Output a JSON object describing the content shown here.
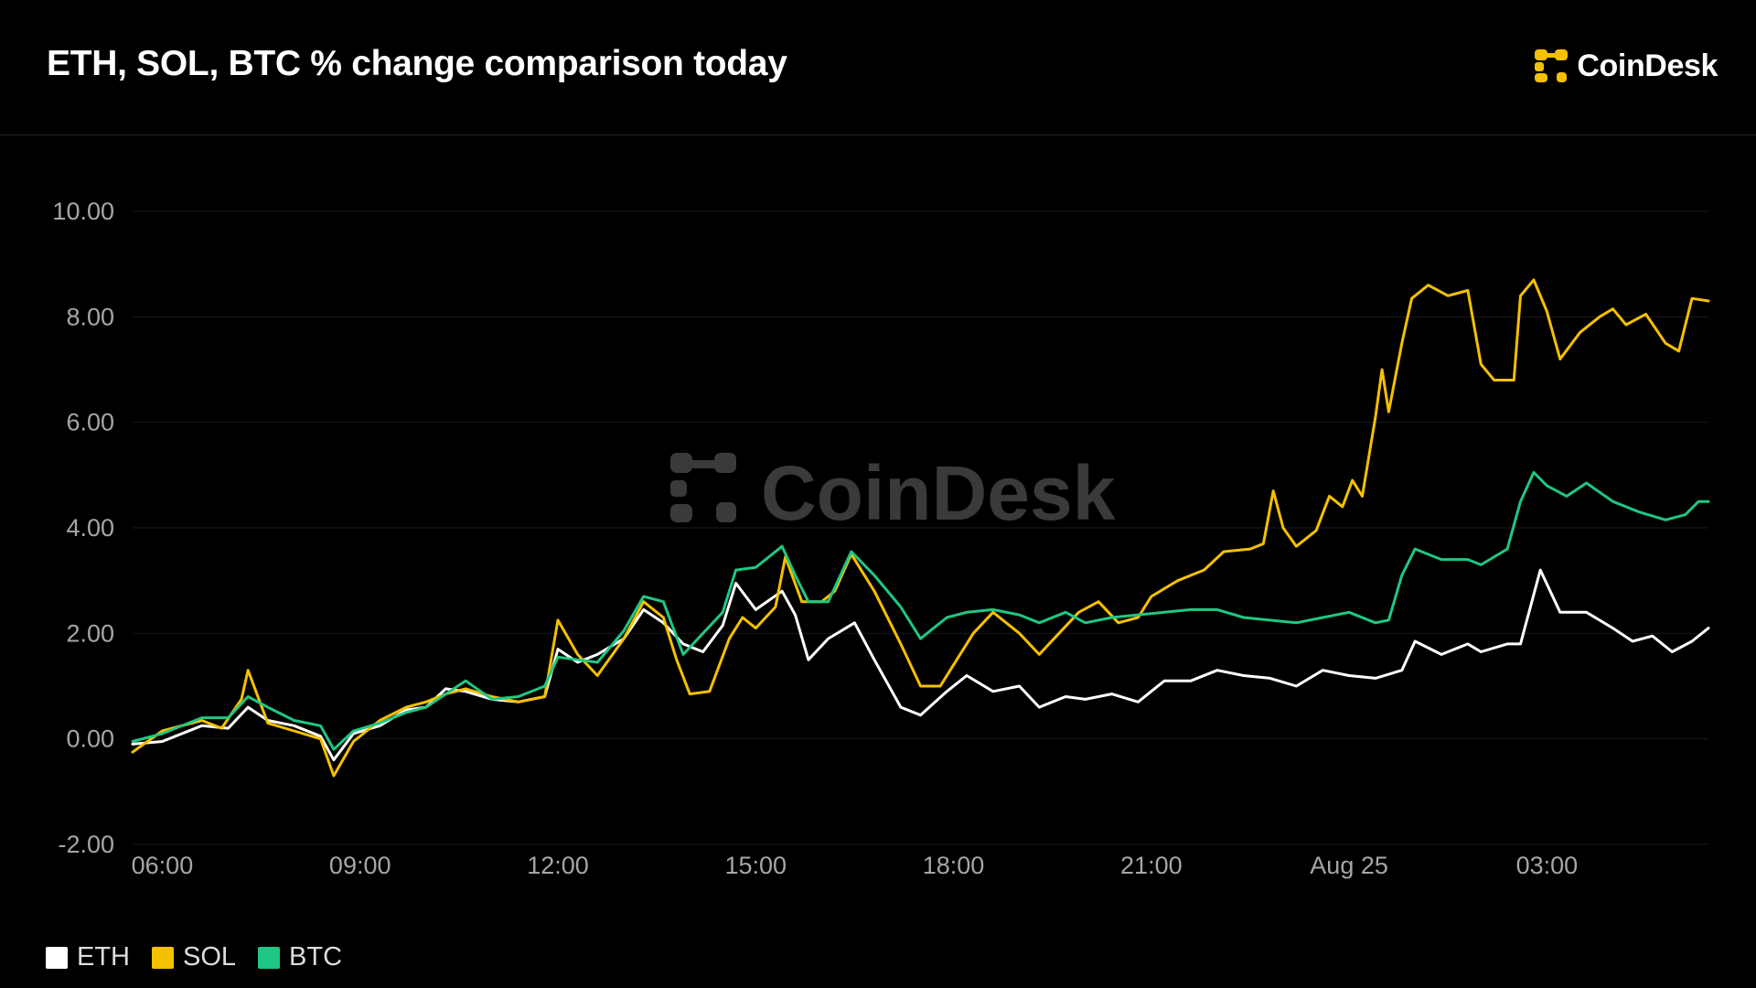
{
  "header": {
    "title": "ETH, SOL, BTC % change comparison today",
    "brand": "CoinDesk"
  },
  "colors": {
    "background": "#000000",
    "eth": "#ffffff",
    "sol": "#f5c000",
    "btc": "#1fc783",
    "grid": "#1a1a1a",
    "tick_text": "#a6a6a6",
    "brand_icon": "#f5c000"
  },
  "icons": {
    "brand_logo": "coindesk-logo-icon",
    "watermark": "coindesk-watermark"
  },
  "watermark": {
    "text": "CoinDesk"
  },
  "chart_data": {
    "type": "line",
    "title": "ETH, SOL, BTC % change comparison today",
    "xlabel": "",
    "ylabel": "",
    "ylim": [
      -2,
      10
    ],
    "y_ticks": [
      "10.00",
      "8.00",
      "6.00",
      "4.00",
      "2.00",
      "0.00",
      "-2.00"
    ],
    "y_tick_values": [
      10,
      8,
      6,
      4,
      2,
      0,
      -2
    ],
    "x_ticks": [
      "06:00",
      "09:00",
      "12:00",
      "15:00",
      "18:00",
      "21:00",
      "Aug 25",
      "03:00"
    ],
    "x_tick_hours": [
      6,
      9,
      12,
      15,
      18,
      21,
      24,
      27
    ],
    "x_range_hours": [
      5.55,
      29.45
    ],
    "grid": true,
    "legend_position": "bottom-left",
    "series": [
      {
        "name": "ETH",
        "color": "#ffffff",
        "points": [
          [
            5.55,
            -0.1
          ],
          [
            6.0,
            -0.05
          ],
          [
            6.6,
            0.25
          ],
          [
            7.0,
            0.2
          ],
          [
            7.3,
            0.6
          ],
          [
            7.6,
            0.35
          ],
          [
            8.0,
            0.25
          ],
          [
            8.4,
            0.05
          ],
          [
            8.6,
            -0.4
          ],
          [
            8.9,
            0.1
          ],
          [
            9.3,
            0.25
          ],
          [
            9.7,
            0.55
          ],
          [
            10.0,
            0.6
          ],
          [
            10.3,
            0.95
          ],
          [
            10.6,
            0.9
          ],
          [
            11.0,
            0.75
          ],
          [
            11.4,
            0.7
          ],
          [
            11.8,
            0.8
          ],
          [
            12.0,
            1.7
          ],
          [
            12.3,
            1.45
          ],
          [
            12.6,
            1.6
          ],
          [
            13.0,
            1.9
          ],
          [
            13.3,
            2.45
          ],
          [
            13.6,
            2.2
          ],
          [
            13.9,
            1.8
          ],
          [
            14.2,
            1.65
          ],
          [
            14.5,
            2.15
          ],
          [
            14.7,
            2.95
          ],
          [
            15.0,
            2.45
          ],
          [
            15.4,
            2.8
          ],
          [
            15.6,
            2.35
          ],
          [
            15.8,
            1.5
          ],
          [
            16.1,
            1.9
          ],
          [
            16.5,
            2.2
          ],
          [
            16.8,
            1.5
          ],
          [
            17.2,
            0.6
          ],
          [
            17.5,
            0.45
          ],
          [
            17.9,
            0.9
          ],
          [
            18.2,
            1.2
          ],
          [
            18.6,
            0.9
          ],
          [
            19.0,
            1.0
          ],
          [
            19.3,
            0.6
          ],
          [
            19.7,
            0.8
          ],
          [
            20.0,
            0.75
          ],
          [
            20.4,
            0.85
          ],
          [
            20.8,
            0.7
          ],
          [
            21.2,
            1.1
          ],
          [
            21.6,
            1.1
          ],
          [
            22.0,
            1.3
          ],
          [
            22.4,
            1.2
          ],
          [
            22.8,
            1.15
          ],
          [
            23.2,
            1.0
          ],
          [
            23.6,
            1.3
          ],
          [
            24.0,
            1.2
          ],
          [
            24.4,
            1.15
          ],
          [
            24.8,
            1.3
          ],
          [
            25.0,
            1.85
          ],
          [
            25.4,
            1.6
          ],
          [
            25.8,
            1.8
          ],
          [
            26.0,
            1.65
          ],
          [
            26.4,
            1.8
          ],
          [
            26.6,
            1.8
          ],
          [
            26.9,
            3.2
          ],
          [
            27.2,
            2.4
          ],
          [
            27.6,
            2.4
          ],
          [
            28.0,
            2.1
          ],
          [
            28.3,
            1.85
          ],
          [
            28.6,
            1.95
          ],
          [
            28.9,
            1.65
          ],
          [
            29.2,
            1.85
          ],
          [
            29.45,
            2.1
          ]
        ]
      },
      {
        "name": "SOL",
        "color": "#f5c000",
        "points": [
          [
            5.55,
            -0.25
          ],
          [
            6.0,
            0.15
          ],
          [
            6.6,
            0.35
          ],
          [
            6.9,
            0.2
          ],
          [
            7.2,
            0.75
          ],
          [
            7.3,
            1.3
          ],
          [
            7.6,
            0.3
          ],
          [
            8.0,
            0.15
          ],
          [
            8.4,
            0.0
          ],
          [
            8.6,
            -0.7
          ],
          [
            8.9,
            -0.05
          ],
          [
            9.3,
            0.35
          ],
          [
            9.7,
            0.6
          ],
          [
            10.0,
            0.7
          ],
          [
            10.3,
            0.85
          ],
          [
            10.6,
            0.95
          ],
          [
            11.0,
            0.8
          ],
          [
            11.4,
            0.7
          ],
          [
            11.8,
            0.8
          ],
          [
            12.0,
            2.25
          ],
          [
            12.3,
            1.6
          ],
          [
            12.6,
            1.2
          ],
          [
            13.0,
            1.9
          ],
          [
            13.3,
            2.6
          ],
          [
            13.6,
            2.3
          ],
          [
            13.8,
            1.5
          ],
          [
            14.0,
            0.85
          ],
          [
            14.3,
            0.9
          ],
          [
            14.6,
            1.9
          ],
          [
            14.8,
            2.3
          ],
          [
            15.0,
            2.1
          ],
          [
            15.3,
            2.5
          ],
          [
            15.45,
            3.45
          ],
          [
            15.7,
            2.6
          ],
          [
            16.0,
            2.6
          ],
          [
            16.2,
            2.8
          ],
          [
            16.45,
            3.5
          ],
          [
            16.8,
            2.8
          ],
          [
            17.2,
            1.8
          ],
          [
            17.5,
            1.0
          ],
          [
            17.8,
            1.0
          ],
          [
            18.0,
            1.4
          ],
          [
            18.3,
            2.0
          ],
          [
            18.6,
            2.4
          ],
          [
            19.0,
            2.0
          ],
          [
            19.3,
            1.6
          ],
          [
            19.6,
            2.0
          ],
          [
            19.9,
            2.4
          ],
          [
            20.2,
            2.6
          ],
          [
            20.5,
            2.2
          ],
          [
            20.8,
            2.3
          ],
          [
            21.0,
            2.7
          ],
          [
            21.4,
            3.0
          ],
          [
            21.8,
            3.2
          ],
          [
            22.1,
            3.55
          ],
          [
            22.5,
            3.6
          ],
          [
            22.7,
            3.7
          ],
          [
            22.85,
            4.7
          ],
          [
            23.0,
            4.0
          ],
          [
            23.2,
            3.65
          ],
          [
            23.5,
            3.95
          ],
          [
            23.7,
            4.6
          ],
          [
            23.9,
            4.4
          ],
          [
            24.05,
            4.9
          ],
          [
            24.2,
            4.6
          ],
          [
            24.4,
            6.1
          ],
          [
            24.5,
            7.0
          ],
          [
            24.6,
            6.2
          ],
          [
            24.8,
            7.5
          ],
          [
            24.95,
            8.35
          ],
          [
            25.2,
            8.6
          ],
          [
            25.5,
            8.4
          ],
          [
            25.8,
            8.5
          ],
          [
            26.0,
            7.1
          ],
          [
            26.2,
            6.8
          ],
          [
            26.5,
            6.8
          ],
          [
            26.6,
            8.4
          ],
          [
            26.8,
            8.7
          ],
          [
            27.0,
            8.1
          ],
          [
            27.2,
            7.2
          ],
          [
            27.5,
            7.7
          ],
          [
            27.8,
            8.0
          ],
          [
            28.0,
            8.15
          ],
          [
            28.2,
            7.85
          ],
          [
            28.5,
            8.05
          ],
          [
            28.8,
            7.5
          ],
          [
            29.0,
            7.35
          ],
          [
            29.2,
            8.35
          ],
          [
            29.45,
            8.3
          ]
        ]
      },
      {
        "name": "BTC",
        "color": "#1fc783",
        "points": [
          [
            5.55,
            -0.05
          ],
          [
            6.0,
            0.1
          ],
          [
            6.6,
            0.4
          ],
          [
            7.0,
            0.4
          ],
          [
            7.3,
            0.8
          ],
          [
            7.6,
            0.6
          ],
          [
            8.0,
            0.35
          ],
          [
            8.4,
            0.25
          ],
          [
            8.6,
            -0.2
          ],
          [
            8.9,
            0.15
          ],
          [
            9.3,
            0.3
          ],
          [
            9.7,
            0.5
          ],
          [
            10.0,
            0.6
          ],
          [
            10.3,
            0.85
          ],
          [
            10.6,
            1.1
          ],
          [
            11.0,
            0.75
          ],
          [
            11.4,
            0.8
          ],
          [
            11.8,
            1.0
          ],
          [
            12.0,
            1.55
          ],
          [
            12.3,
            1.5
          ],
          [
            12.6,
            1.45
          ],
          [
            13.0,
            2.05
          ],
          [
            13.3,
            2.7
          ],
          [
            13.6,
            2.6
          ],
          [
            13.9,
            1.6
          ],
          [
            14.2,
            2.0
          ],
          [
            14.5,
            2.4
          ],
          [
            14.7,
            3.2
          ],
          [
            15.0,
            3.25
          ],
          [
            15.4,
            3.65
          ],
          [
            15.6,
            3.1
          ],
          [
            15.8,
            2.6
          ],
          [
            16.1,
            2.6
          ],
          [
            16.45,
            3.55
          ],
          [
            16.8,
            3.1
          ],
          [
            17.2,
            2.5
          ],
          [
            17.5,
            1.9
          ],
          [
            17.9,
            2.3
          ],
          [
            18.2,
            2.4
          ],
          [
            18.6,
            2.45
          ],
          [
            19.0,
            2.35
          ],
          [
            19.3,
            2.2
          ],
          [
            19.7,
            2.4
          ],
          [
            20.0,
            2.2
          ],
          [
            20.4,
            2.3
          ],
          [
            20.8,
            2.35
          ],
          [
            21.2,
            2.4
          ],
          [
            21.6,
            2.45
          ],
          [
            22.0,
            2.45
          ],
          [
            22.4,
            2.3
          ],
          [
            22.8,
            2.25
          ],
          [
            23.2,
            2.2
          ],
          [
            23.6,
            2.3
          ],
          [
            24.0,
            2.4
          ],
          [
            24.4,
            2.2
          ],
          [
            24.6,
            2.25
          ],
          [
            24.8,
            3.1
          ],
          [
            25.0,
            3.6
          ],
          [
            25.4,
            3.4
          ],
          [
            25.8,
            3.4
          ],
          [
            26.0,
            3.3
          ],
          [
            26.4,
            3.6
          ],
          [
            26.6,
            4.5
          ],
          [
            26.8,
            5.05
          ],
          [
            27.0,
            4.8
          ],
          [
            27.3,
            4.6
          ],
          [
            27.6,
            4.85
          ],
          [
            28.0,
            4.5
          ],
          [
            28.4,
            4.3
          ],
          [
            28.8,
            4.15
          ],
          [
            29.1,
            4.25
          ],
          [
            29.3,
            4.5
          ],
          [
            29.45,
            4.5
          ]
        ]
      }
    ]
  }
}
